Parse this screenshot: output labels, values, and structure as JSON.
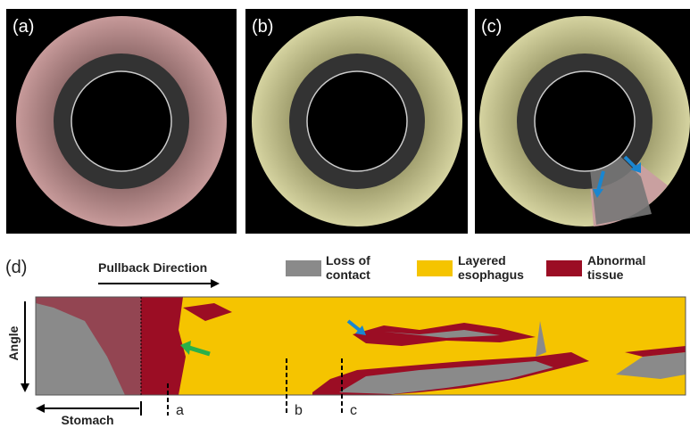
{
  "panels": [
    {
      "label": "(a)"
    },
    {
      "label": "(b)"
    },
    {
      "label": "(c)"
    }
  ],
  "map": {
    "label": "(d)",
    "direction": "Pullback Direction",
    "axis_label": "Angle",
    "region_label": "Stomach",
    "markers": [
      "a",
      "b",
      "c"
    ],
    "legend": [
      "Loss of contact",
      "Layered esophagus",
      "Abnormal tissue"
    ]
  }
}
